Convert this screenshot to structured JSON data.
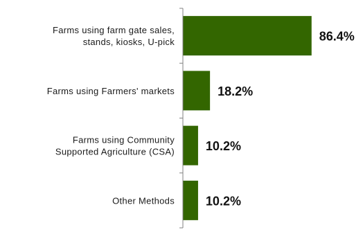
{
  "chart_data": {
    "type": "bar",
    "orientation": "horizontal",
    "title": "",
    "xlabel": "",
    "ylabel": "",
    "categories": [
      [
        "Farms using farm gate sales,",
        "stands, kiosks, U-pick"
      ],
      [
        "Farms using Farmers' markets"
      ],
      [
        "Farms using Community",
        "Supported Agriculture (CSA)"
      ],
      [
        "Other Methods"
      ]
    ],
    "values": [
      86.4,
      18.2,
      10.2,
      10.2
    ],
    "value_labels": [
      "86.4%",
      "18.2%",
      "10.2%",
      "10.2%"
    ],
    "xlim": [
      0,
      100
    ],
    "bar_color": "#336600",
    "axis_color": "#808080",
    "grid": false,
    "legend": "none"
  }
}
